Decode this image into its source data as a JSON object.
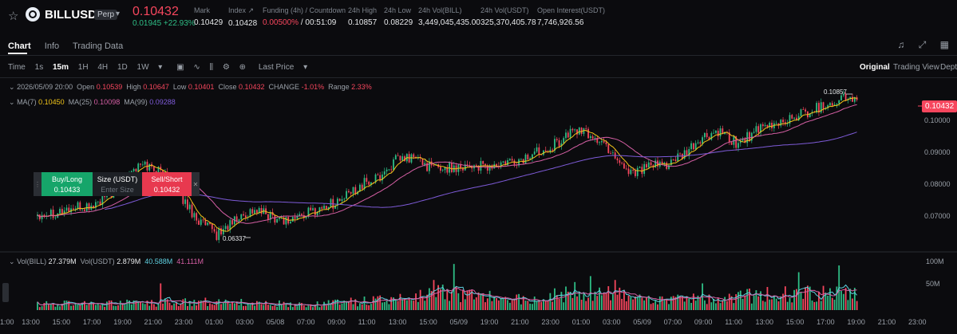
{
  "header": {
    "symbol": "BILLUSDT",
    "contract_badge": "Perp",
    "last_price": "0.10432",
    "change": "0.01945 +22.93%",
    "stats": [
      {
        "label": "Mark",
        "value": "0.10429"
      },
      {
        "label": "Index",
        "value": "0.10428"
      },
      {
        "label": "Funding (4h) / Countdown",
        "value": "0.00500%",
        "value2": "/ 00:51:09"
      },
      {
        "label": "24h High",
        "value": "0.10857"
      },
      {
        "label": "24h Low",
        "value": "0.08229"
      },
      {
        "label": "24h Vol(BILL)",
        "value": "3,449,045,435.00"
      },
      {
        "label": "24h Vol(USDT)",
        "value": "325,370,405.78"
      },
      {
        "label": "Open Interest(USDT)",
        "value": "7,746,926.56"
      }
    ]
  },
  "tabs": [
    "Chart",
    "Info",
    "Trading Data"
  ],
  "toolbar": {
    "time_label": "Time",
    "intervals": [
      "1s",
      "15m",
      "1H",
      "4H",
      "1D",
      "1W"
    ],
    "active_interval": "15m",
    "price_type": "Last Price",
    "views": [
      "Original",
      "Trading View",
      "Depth"
    ],
    "active_view": "Original"
  },
  "ohlc": {
    "datetime": "2026/05/09 20:00",
    "open_label": "Open",
    "open": "0.10539",
    "high_label": "High",
    "high": "0.10647",
    "low_label": "Low",
    "low": "0.10401",
    "close_label": "Close",
    "close": "0.10432",
    "change_label": "CHANGE",
    "change": "-1.01%",
    "range_label": "Range",
    "range": "2.33%"
  },
  "ma": {
    "ma7_label": "MA(7)",
    "ma7": "0.10450",
    "ma25_label": "MA(25)",
    "ma25": "0.10098",
    "ma99_label": "MA(99)",
    "ma99": "0.09288"
  },
  "vol": {
    "vol_label": "Vol(BILL)",
    "vol": "27.379M",
    "vol_usdt_label": "Vol(USDT)",
    "vol_usdt": "2.879M",
    "ma1": "40.588M",
    "ma2": "41.111M"
  },
  "quick_trade": {
    "buy_label": "Buy/Long",
    "buy_price": "0.10433",
    "size_label": "Size (USDT)",
    "size_placeholder": "Enter Size",
    "sell_label": "Sell/Short",
    "sell_price": "0.10432"
  },
  "chart_data": {
    "type": "candlestick",
    "y_ticks": [
      "0.10000",
      "0.09000",
      "0.08000",
      "0.07000"
    ],
    "ylim": [
      0.0625,
      0.1105
    ],
    "volume_ticks": [
      "100M",
      "50M"
    ],
    "volume_ylim": [
      0,
      110
    ],
    "x_ticks": [
      "1:00",
      "13:00",
      "15:00",
      "17:00",
      "19:00",
      "21:00",
      "23:00",
      "01:00",
      "03:00",
      "05/08",
      "07:00",
      "09:00",
      "11:00",
      "13:00",
      "15:00",
      "05/09",
      "19:00",
      "21:00",
      "23:00",
      "01:00",
      "03:00",
      "05/09",
      "07:00",
      "09:00",
      "11:00",
      "13:00",
      "15:00",
      "17:00",
      "19:00",
      "21:00",
      "23:00"
    ],
    "high_marker": "0.10857",
    "low_marker": "0.06337",
    "anchors": [
      [
        0,
        0.072
      ],
      [
        8,
        0.0725
      ],
      [
        16,
        0.0735
      ],
      [
        24,
        0.074
      ],
      [
        32,
        0.077
      ],
      [
        40,
        0.084
      ],
      [
        48,
        0.086
      ],
      [
        56,
        0.0835
      ],
      [
        64,
        0.077
      ],
      [
        72,
        0.07
      ],
      [
        80,
        0.066
      ],
      [
        88,
        0.07
      ],
      [
        96,
        0.073
      ],
      [
        104,
        0.0715
      ],
      [
        112,
        0.07
      ],
      [
        120,
        0.072
      ],
      [
        128,
        0.074
      ],
      [
        136,
        0.076
      ],
      [
        144,
        0.08
      ],
      [
        152,
        0.082
      ],
      [
        160,
        0.087
      ],
      [
        168,
        0.088
      ],
      [
        176,
        0.085
      ],
      [
        184,
        0.085
      ],
      [
        192,
        0.086
      ],
      [
        200,
        0.085
      ],
      [
        208,
        0.086
      ],
      [
        216,
        0.087
      ],
      [
        224,
        0.09
      ],
      [
        232,
        0.092
      ],
      [
        240,
        0.096
      ],
      [
        248,
        0.094
      ],
      [
        256,
        0.09
      ],
      [
        264,
        0.084
      ],
      [
        272,
        0.085
      ],
      [
        280,
        0.086
      ],
      [
        288,
        0.088
      ],
      [
        296,
        0.093
      ],
      [
        304,
        0.095
      ],
      [
        312,
        0.092
      ],
      [
        320,
        0.095
      ],
      [
        328,
        0.097
      ],
      [
        336,
        0.099
      ],
      [
        344,
        0.101
      ],
      [
        352,
        0.103
      ],
      [
        360,
        0.105
      ],
      [
        366,
        0.1043
      ]
    ],
    "volume_profile": [
      [
        0,
        12
      ],
      [
        40,
        14
      ],
      [
        80,
        18
      ],
      [
        120,
        11
      ],
      [
        160,
        22
      ],
      [
        180,
        35
      ],
      [
        200,
        26
      ],
      [
        220,
        22
      ],
      [
        240,
        38
      ],
      [
        260,
        30
      ],
      [
        280,
        22
      ],
      [
        300,
        22
      ],
      [
        320,
        30
      ],
      [
        340,
        34
      ],
      [
        366,
        32
      ]
    ],
    "volume_spikes": [
      [
        55,
        55
      ],
      [
        177,
        62
      ],
      [
        186,
        95
      ],
      [
        247,
        70
      ],
      [
        258,
        62
      ],
      [
        297,
        55
      ],
      [
        340,
        78
      ],
      [
        358,
        92
      ]
    ]
  },
  "colors": {
    "up": "#2ebd85",
    "down": "#f6465d",
    "ma7": "#f0c419",
    "ma25": "#d55fa4",
    "ma99": "#7e5bd8",
    "vol_ma1": "#5fd0e0",
    "vol_ma2": "#d55fa4"
  }
}
